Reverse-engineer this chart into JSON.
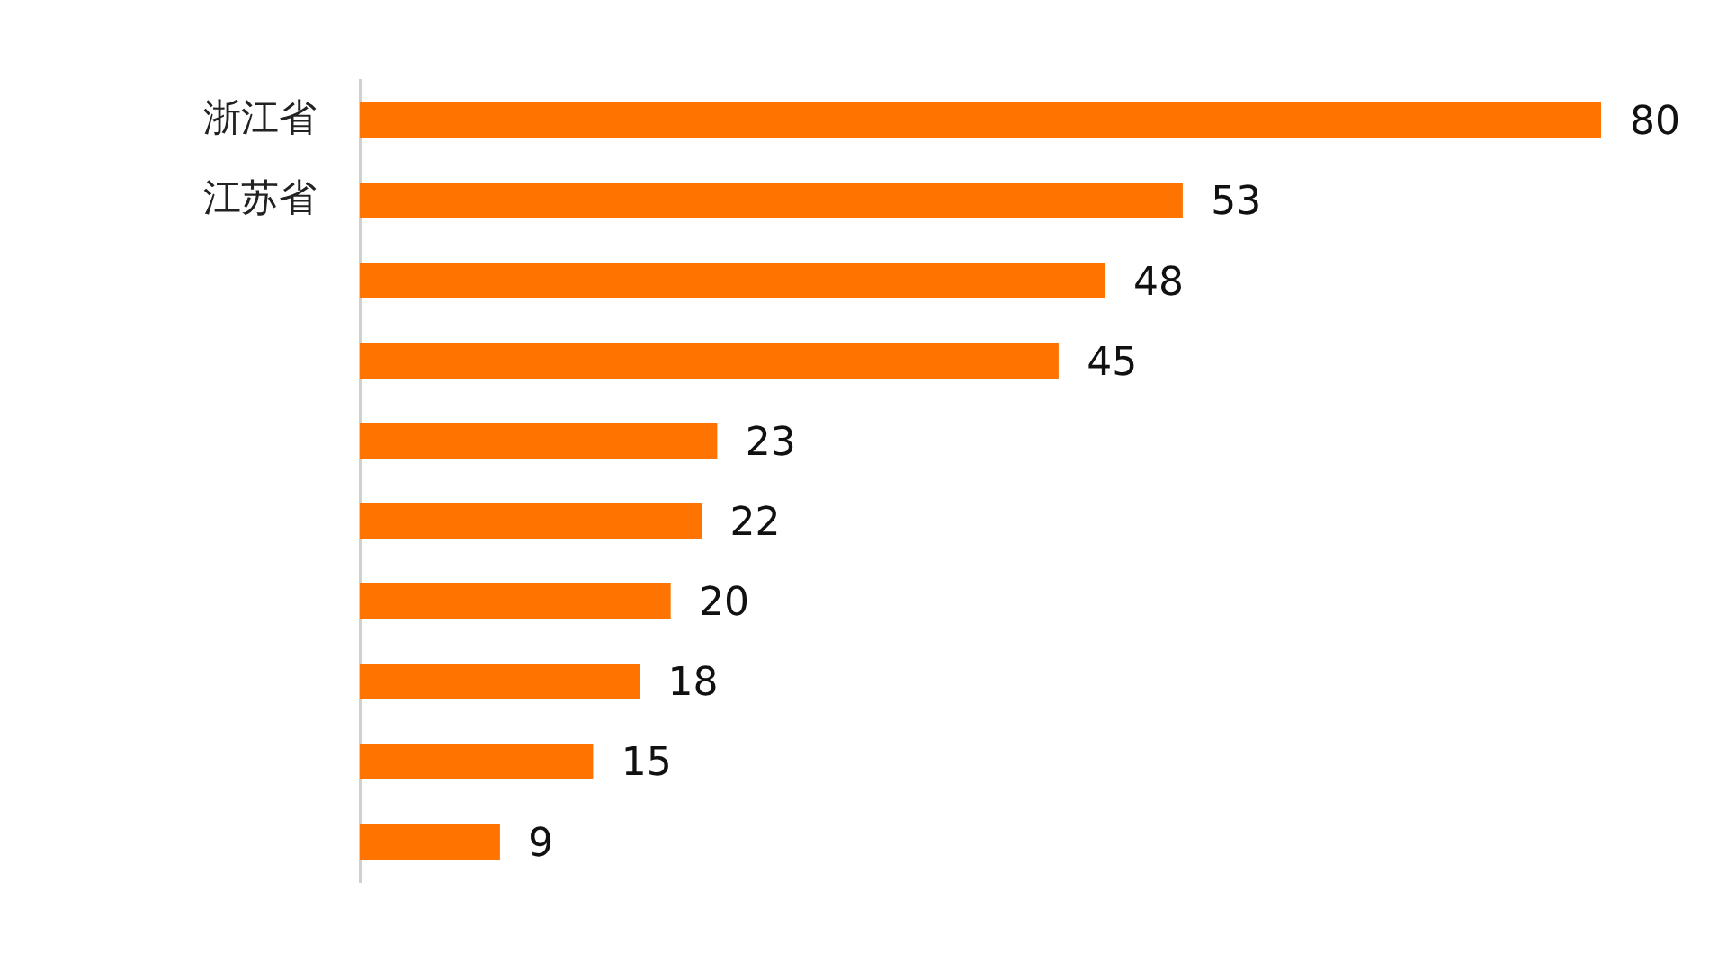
{
  "chart_data": {
    "type": "bar",
    "orientation": "horizontal",
    "categories": [
      "浙江省",
      "江苏省",
      null,
      null,
      null,
      null,
      null,
      null,
      null,
      null
    ],
    "values": [
      80,
      53,
      48,
      45,
      23,
      22,
      20,
      18,
      15,
      9
    ],
    "color": "#ff7300",
    "data_labels": true
  }
}
